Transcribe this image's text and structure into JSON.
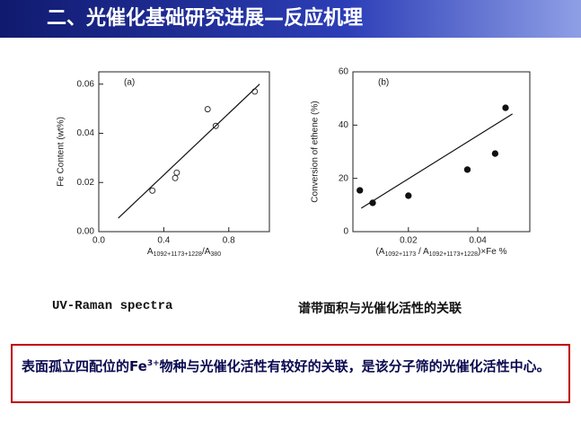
{
  "slide": {
    "title": "二、光催化基础研究进展—反应机理",
    "caption_left": "UV-Raman spectra",
    "caption_right": "谱带面积与光催化活性的关联",
    "note": [
      "表面孤立四配位的Fe",
      "3+",
      "物种与光催化活性有较好的关联，是该分子筛的光催化活性中心。"
    ]
  },
  "chart_data": [
    {
      "type": "scatter",
      "panel_label": "(a)",
      "ylabel": "Fe Content (wt%)",
      "xlabel": [
        "A",
        "1092+1173+1228",
        "/A",
        "380"
      ],
      "x": [
        0.33,
        0.47,
        0.48,
        0.67,
        0.72,
        0.96
      ],
      "values": [
        0.0167,
        0.0218,
        0.024,
        0.0498,
        0.043,
        0.057
      ],
      "marker": "open",
      "color": "#222222",
      "fit": {
        "x": [
          0.12,
          0.99
        ],
        "y": [
          0.0055,
          0.06
        ]
      },
      "xlim": [
        0,
        1.05
      ],
      "ylim": [
        0,
        0.065
      ],
      "xticks": [
        {
          "value": 0,
          "label": "0.0"
        },
        0.4,
        0.8
      ],
      "yticks": [
        {
          "value": 0,
          "label": "0.00"
        },
        0.02,
        0.04,
        0.06
      ]
    },
    {
      "type": "scatter",
      "panel_label": "(b)",
      "ylabel": "Conversion of ethene (%)",
      "xlabel": [
        "(A",
        "1092+1173",
        " / A",
        "1092+1173+1228",
        ")×Fe %"
      ],
      "x": [
        0.006,
        0.0097,
        0.02,
        0.037,
        0.045,
        0.048
      ],
      "values": [
        15.5,
        10.8,
        13.5,
        23.3,
        29.3,
        46.5
      ],
      "marker": "filled",
      "color": "#111111",
      "fit": {
        "x": [
          0.0064,
          0.05
        ],
        "y": [
          8.8,
          44.2
        ]
      },
      "xlim": [
        0.004,
        0.055
      ],
      "ylim": [
        0,
        60
      ],
      "xticks": [
        0.02,
        0.04
      ],
      "yticks": [
        0,
        20,
        40,
        60
      ]
    }
  ]
}
